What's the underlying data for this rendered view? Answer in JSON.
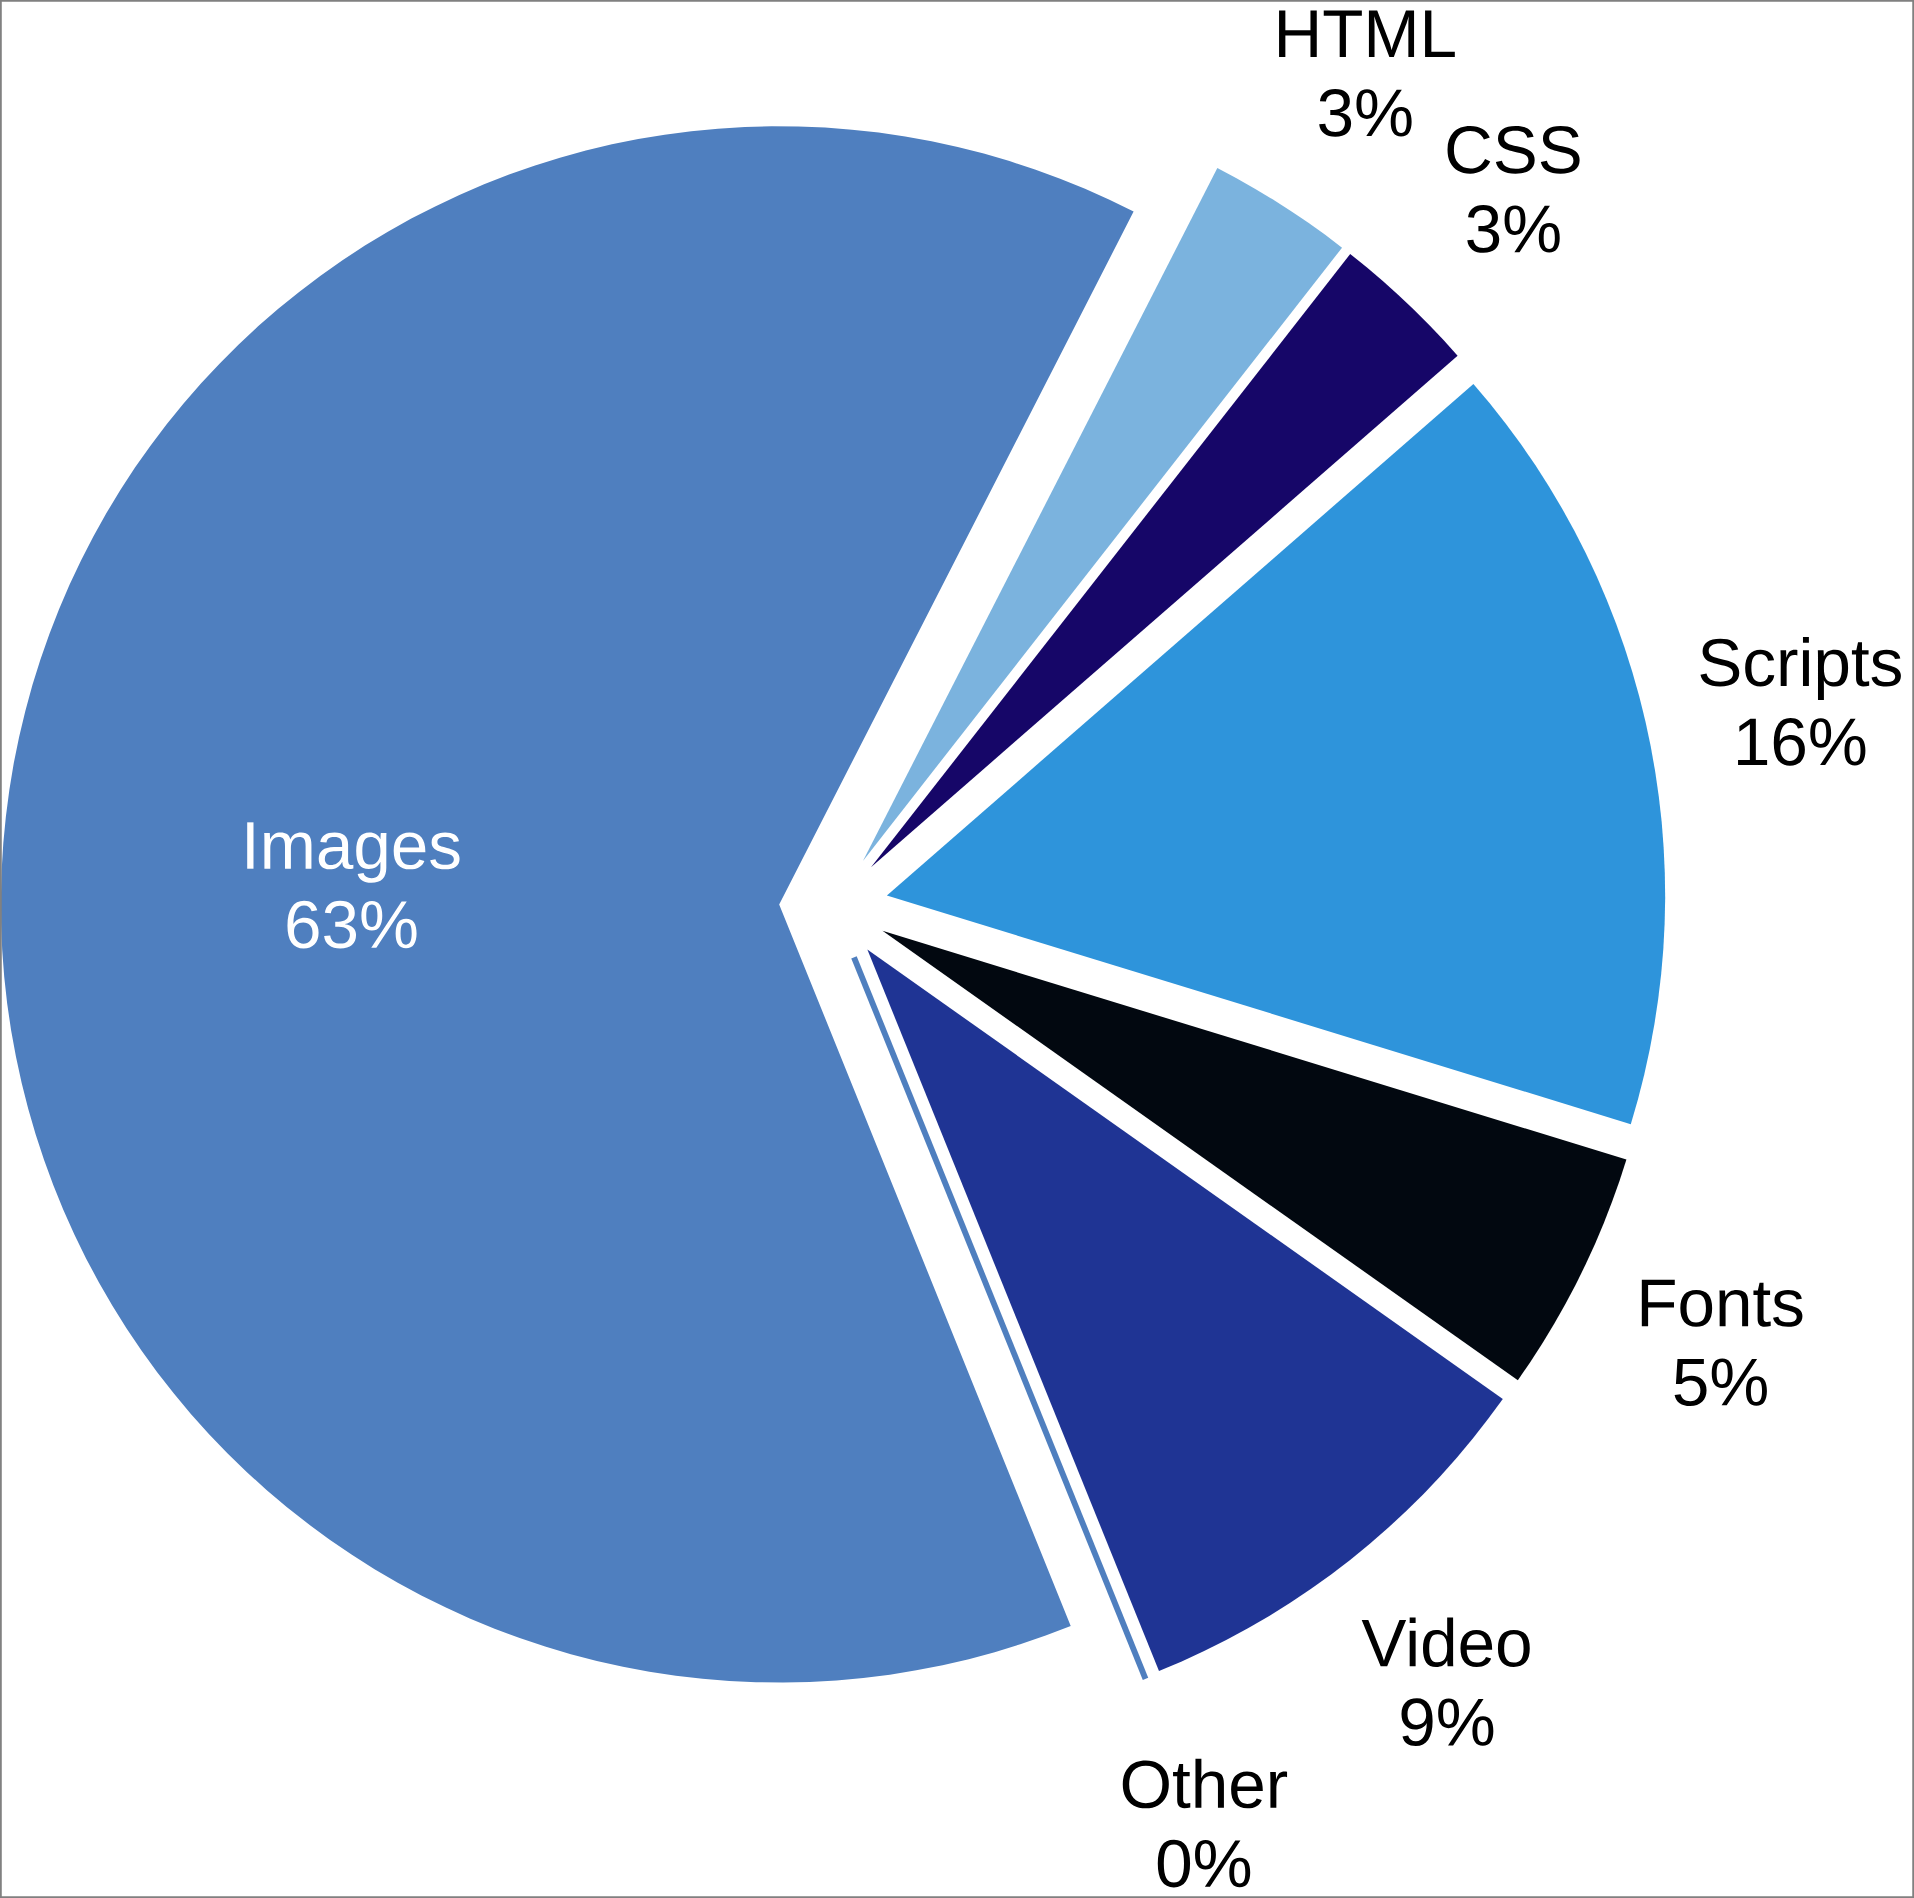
{
  "chart_data": {
    "type": "pie",
    "categories": [
      "Images",
      "HTML",
      "CSS",
      "Scripts",
      "Fonts",
      "Video",
      "Other"
    ],
    "values": [
      63,
      3,
      3,
      16,
      5,
      9,
      0
    ],
    "value_labels": [
      "63%",
      "3%",
      "3%",
      "16%",
      "5%",
      "9%",
      "0%"
    ],
    "colors": [
      "#4f7fbf",
      "#7bb3de",
      "#160668",
      "#2e94db",
      "#020810",
      "#1f3494",
      "#4f7fbf"
    ]
  }
}
